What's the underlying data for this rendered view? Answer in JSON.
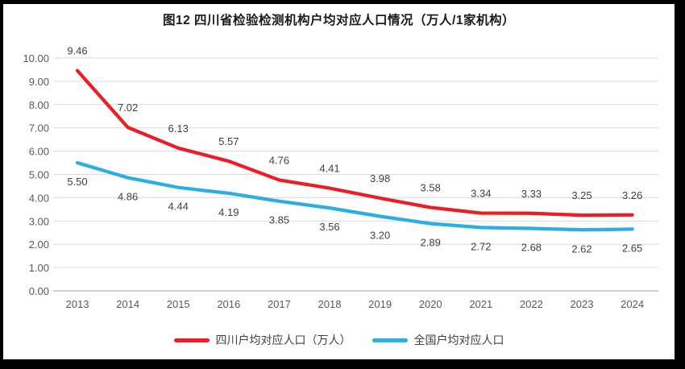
{
  "frame": {
    "border_color": "#000000",
    "background": "#ffffff"
  },
  "chart_data": {
    "type": "line",
    "title": "图12 四川省检验检测机构户均对应人口情况（万人/1家机构）",
    "categories": [
      "2013",
      "2014",
      "2015",
      "2016",
      "2017",
      "2018",
      "2019",
      "2020",
      "2021",
      "2022",
      "2023",
      "2024"
    ],
    "series": [
      {
        "name": "四川户均对应人口（万人）",
        "values": [
          9.46,
          7.02,
          6.13,
          5.57,
          4.76,
          4.41,
          3.98,
          3.58,
          3.34,
          3.33,
          3.25,
          3.26
        ],
        "color": "#ee1c25",
        "label_position": "above"
      },
      {
        "name": "全国户均对应人口",
        "values": [
          5.5,
          4.86,
          4.44,
          4.19,
          3.85,
          3.56,
          3.2,
          2.89,
          2.72,
          2.68,
          2.62,
          2.65
        ],
        "color": "#2aaee3",
        "label_position": "below"
      }
    ],
    "xlabel": "",
    "ylabel": "",
    "ylim": [
      0,
      10
    ],
    "y_ticks": [
      "0.00",
      "1.00",
      "2.00",
      "3.00",
      "4.00",
      "5.00",
      "6.00",
      "7.00",
      "8.00",
      "9.00",
      "10.00"
    ],
    "grid": true,
    "legend_position": "bottom",
    "gridline_color": "#d9d9d9",
    "axis_line_color": "#bfbfbf",
    "tick_label_color": "#595959",
    "data_label_color": "#404040"
  }
}
